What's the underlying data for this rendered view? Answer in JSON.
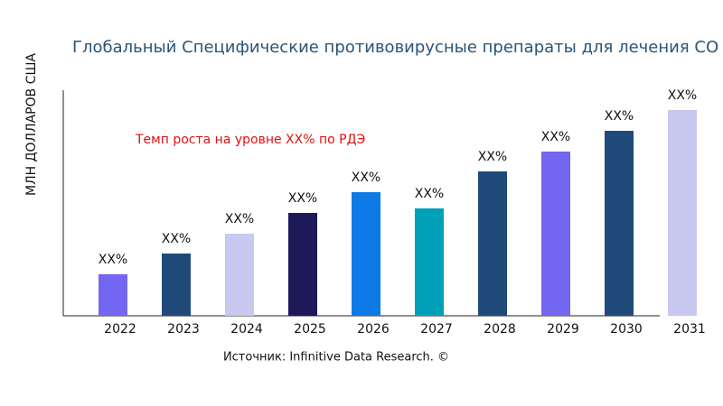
{
  "chart_data": {
    "type": "bar",
    "title": "Глобальный Специфические противовирусные препараты для лечения СО",
    "y_label": "МЛН ДОЛЛАРОВ США",
    "annotation": "Темп роста на уровне XX% по РДЭ",
    "source": "Источник: Infinitive Data Research. ©",
    "categories": [
      "2022",
      "2023",
      "2024",
      "2025",
      "2026",
      "2027",
      "2028",
      "2029",
      "2030",
      "2031"
    ],
    "values": [
      46,
      69,
      91,
      114,
      137,
      119,
      160,
      182,
      205,
      228
    ],
    "value_labels": [
      "XX%",
      "XX%",
      "XX%",
      "XX%",
      "XX%",
      "XX%",
      "XX%",
      "XX%",
      "XX%",
      "XX%"
    ],
    "colors": [
      "#7366f0",
      "#1f4a7a",
      "#c8c8f0",
      "#1e1a5a",
      "#0e7ae6",
      "#00a0b8",
      "#1f4a7a",
      "#7366f0",
      "#1f4a7a",
      "#c8c8f0"
    ],
    "ylim": [
      0,
      250
    ]
  }
}
